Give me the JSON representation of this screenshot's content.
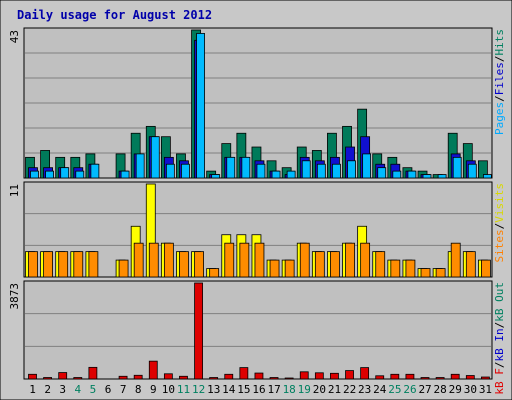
{
  "chart_data": {
    "type": "bar",
    "title": "Daily usage for August 2012",
    "categories": [
      "1",
      "2",
      "3",
      "4",
      "5",
      "6",
      "7",
      "8",
      "9",
      "10",
      "11",
      "12",
      "13",
      "14",
      "15",
      "16",
      "17",
      "18",
      "19",
      "20",
      "21",
      "22",
      "23",
      "24",
      "25",
      "26",
      "27",
      "28",
      "29",
      "30",
      "31"
    ],
    "weekend_days": [
      "4",
      "5",
      "11",
      "12",
      "18",
      "19",
      "25",
      "26"
    ],
    "panels": [
      {
        "id": "top",
        "max_label": "43",
        "ylim": [
          0,
          43
        ],
        "legend": [
          {
            "text": "Pages",
            "color": "#00aaff"
          },
          {
            "text": "/",
            "color": "#000000"
          },
          {
            "text": "Files",
            "color": "#0000cc"
          },
          {
            "text": "/",
            "color": "#000000"
          },
          {
            "text": "Hits",
            "color": "#008060"
          }
        ],
        "series": [
          {
            "name": "Hits",
            "color": "#007a5a",
            "values": [
              6,
              8,
              6,
              6,
              7,
              0,
              7,
              13,
              15,
              12,
              7,
              43,
              2,
              10,
              13,
              9,
              5,
              3,
              9,
              8,
              13,
              15,
              20,
              7,
              6,
              3,
              2,
              1,
              13,
              10,
              5
            ]
          },
          {
            "name": "Files",
            "color": "#1010d0",
            "values": [
              3,
              3,
              3,
              3,
              4,
              0,
              2,
              7,
              12,
              6,
              5,
              40,
              1,
              6,
              6,
              5,
              2,
              1,
              6,
              5,
              6,
              9,
              12,
              4,
              4,
              2,
              1,
              0,
              7,
              5,
              0
            ]
          },
          {
            "name": "Pages",
            "color": "#00bbff",
            "values": [
              2,
              2,
              3,
              2,
              4,
              0,
              2,
              7,
              12,
              4,
              4,
              42,
              1,
              6,
              6,
              4,
              2,
              2,
              5,
              4,
              4,
              5,
              7,
              3,
              2,
              2,
              1,
              1,
              6,
              4,
              1
            ]
          }
        ]
      },
      {
        "id": "middle",
        "max_label": "11",
        "ylim": [
          0,
          11
        ],
        "legend": [
          {
            "text": "Sites",
            "color": "#ff8000"
          },
          {
            "text": "/",
            "color": "#000000"
          },
          {
            "text": "Visits",
            "color": "#d8d800"
          }
        ],
        "series": [
          {
            "name": "Visits",
            "color": "#ffff00",
            "values": [
              3,
              3,
              3,
              3,
              3,
              0,
              2,
              6,
              11,
              4,
              3,
              3,
              1,
              5,
              5,
              5,
              2,
              2,
              4,
              3,
              3,
              4,
              6,
              3,
              2,
              2,
              1,
              1,
              3,
              3,
              2
            ]
          },
          {
            "name": "Sites",
            "color": "#ff8c00",
            "values": [
              3,
              3,
              3,
              3,
              3,
              0,
              2,
              4,
              4,
              4,
              3,
              3,
              1,
              4,
              4,
              4,
              2,
              2,
              4,
              3,
              3,
              4,
              4,
              3,
              2,
              2,
              1,
              1,
              4,
              3,
              2
            ]
          }
        ]
      },
      {
        "id": "bottom",
        "max_label": "3873",
        "ylim": [
          0,
          3873
        ],
        "legend": [
          {
            "text": "kB F",
            "color": "#e00000"
          },
          {
            "text": "/",
            "color": "#000000"
          },
          {
            "text": "kB In",
            "color": "#0000cc"
          },
          {
            "text": "/",
            "color": "#000000"
          },
          {
            "text": "kB Out",
            "color": "#008060"
          }
        ],
        "series": [
          {
            "name": "kB F",
            "color": "#dd0000",
            "values": [
              190,
              60,
              260,
              60,
              470,
              0,
              110,
              150,
              720,
              210,
              110,
              3873,
              60,
              190,
              460,
              240,
              60,
              30,
              290,
              250,
              230,
              340,
              460,
              130,
              190,
              190,
              60,
              60,
              190,
              140,
              80
            ]
          }
        ]
      }
    ]
  },
  "colors": {
    "background": "#ffffff",
    "frame": "#c8c8c8",
    "plot": "#c0c0c0",
    "gridline": "#808080",
    "title": "#0000aa",
    "weekday_label": "#000000",
    "weekend_label": "#008060",
    "bar_outline": "#000000"
  }
}
